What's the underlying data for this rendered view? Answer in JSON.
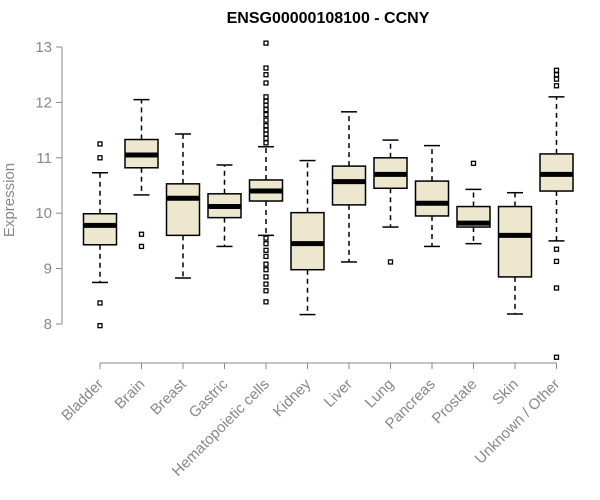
{
  "chart_data": {
    "type": "boxplot",
    "title": "ENSG00000108100 - CCNY",
    "xlabel": "",
    "ylabel": "Expression",
    "ylim": [
      7.4,
      13.1
    ],
    "yticks": [
      8,
      9,
      10,
      11,
      12,
      13
    ],
    "grid": false,
    "box_fill": "#ede7cf",
    "axis_color": "#888888",
    "categories": [
      "Bladder",
      "Brain",
      "Breast",
      "Gastric",
      "Hematopoietic cells",
      "Kidney",
      "Liver",
      "Lung",
      "Pancreas",
      "Prostate",
      "Skin",
      "Unknown / Other"
    ],
    "boxes": [
      {
        "q1": 9.43,
        "median": 9.78,
        "q3": 9.99,
        "whisker_low": 8.75,
        "whisker_high": 10.73,
        "outliers": [
          11.25,
          11.0,
          8.38,
          7.97
        ]
      },
      {
        "q1": 10.82,
        "median": 11.05,
        "q3": 11.33,
        "whisker_low": 10.33,
        "whisker_high": 12.05,
        "outliers": [
          9.62,
          9.4
        ]
      },
      {
        "q1": 9.6,
        "median": 10.27,
        "q3": 10.53,
        "whisker_low": 8.83,
        "whisker_high": 11.43,
        "outliers": []
      },
      {
        "q1": 9.92,
        "median": 10.12,
        "q3": 10.35,
        "whisker_low": 9.4,
        "whisker_high": 10.87,
        "outliers": []
      },
      {
        "q1": 10.22,
        "median": 10.4,
        "q3": 10.6,
        "whisker_low": 9.6,
        "whisker_high": 11.2,
        "outliers": [
          13.07,
          12.62,
          12.5,
          12.35,
          12.1,
          12.02,
          11.95,
          11.87,
          11.78,
          11.68,
          11.58,
          11.5,
          11.43,
          11.35,
          11.27,
          9.55,
          9.45,
          9.33,
          9.22,
          9.08,
          8.98,
          8.85,
          8.72,
          8.6,
          8.4
        ]
      },
      {
        "q1": 8.98,
        "median": 9.45,
        "q3": 10.01,
        "whisker_low": 8.17,
        "whisker_high": 10.95,
        "outliers": []
      },
      {
        "q1": 10.15,
        "median": 10.57,
        "q3": 10.85,
        "whisker_low": 9.12,
        "whisker_high": 11.83,
        "outliers": []
      },
      {
        "q1": 10.45,
        "median": 10.7,
        "q3": 11.0,
        "whisker_low": 9.75,
        "whisker_high": 11.32,
        "outliers": [
          9.12
        ]
      },
      {
        "q1": 9.95,
        "median": 10.18,
        "q3": 10.58,
        "whisker_low": 9.4,
        "whisker_high": 11.22,
        "outliers": []
      },
      {
        "q1": 9.75,
        "median": 9.82,
        "q3": 10.12,
        "whisker_low": 9.45,
        "whisker_high": 10.43,
        "outliers": [
          10.9
        ]
      },
      {
        "q1": 8.85,
        "median": 9.6,
        "q3": 10.12,
        "whisker_low": 8.18,
        "whisker_high": 10.37,
        "outliers": []
      },
      {
        "q1": 10.4,
        "median": 10.7,
        "q3": 11.07,
        "whisker_low": 9.5,
        "whisker_high": 12.1,
        "outliers": [
          12.58,
          12.5,
          12.42,
          12.3,
          9.35,
          9.13,
          8.65,
          7.4
        ]
      }
    ]
  }
}
